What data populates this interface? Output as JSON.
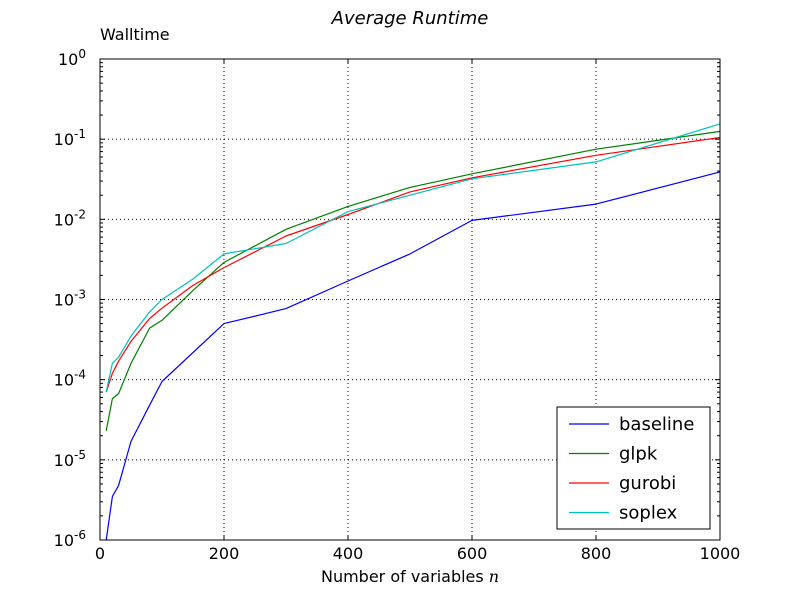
{
  "chart_data": {
    "type": "line",
    "title": "Average Runtime",
    "ylabel": "Walltime",
    "xlabel": "Number of variables",
    "xlabel_var": "n",
    "xlim": [
      0,
      1000
    ],
    "ylim": [
      1e-06,
      1
    ],
    "yscale": "log",
    "grid": true,
    "legend_position": "bottom-right",
    "x_ticks": [
      0,
      200,
      400,
      600,
      800,
      1000
    ],
    "x_tick_labels": [
      "0",
      "200",
      "400",
      "600",
      "800",
      "1000"
    ],
    "y_ticks": [
      1e-06,
      1e-05,
      0.0001,
      0.001,
      0.01,
      0.1,
      1
    ],
    "y_tick_labels": [
      {
        "base": "10",
        "exp": "-6"
      },
      {
        "base": "10",
        "exp": "-5"
      },
      {
        "base": "10",
        "exp": "-4"
      },
      {
        "base": "10",
        "exp": "-3"
      },
      {
        "base": "10",
        "exp": "-2"
      },
      {
        "base": "10",
        "exp": "-1"
      },
      {
        "base": "10",
        "exp": "0"
      }
    ],
    "series": [
      {
        "name": "baseline",
        "color": "#0000ff",
        "x": [
          10,
          20,
          30,
          50,
          80,
          100,
          200,
          300,
          400,
          500,
          600,
          800,
          1000
        ],
        "y": [
          1e-06,
          3.5e-06,
          4.8e-06,
          1.7e-05,
          4.8e-05,
          9.5e-05,
          0.0005,
          0.00077,
          0.0017,
          0.0037,
          0.0097,
          0.0155,
          0.039
        ]
      },
      {
        "name": "glpk",
        "color": "#008000",
        "x": [
          10,
          20,
          30,
          50,
          80,
          100,
          150,
          200,
          300,
          400,
          500,
          600,
          800,
          1000
        ],
        "y": [
          2.3e-05,
          5.8e-05,
          6.7e-05,
          0.00016,
          0.00044,
          0.00055,
          0.0013,
          0.0029,
          0.0075,
          0.0145,
          0.025,
          0.037,
          0.075,
          0.125
        ]
      },
      {
        "name": "gurobi",
        "color": "#ff0000",
        "x": [
          10,
          20,
          30,
          50,
          80,
          100,
          150,
          200,
          300,
          400,
          500,
          600,
          800,
          1000
        ],
        "y": [
          7e-05,
          0.00012,
          0.00017,
          0.0003,
          0.00058,
          0.00078,
          0.0015,
          0.0025,
          0.0062,
          0.0115,
          0.022,
          0.033,
          0.063,
          0.105
        ]
      },
      {
        "name": "soplex",
        "color": "#00bfbf",
        "x": [
          10,
          20,
          30,
          50,
          80,
          100,
          150,
          200,
          300,
          400,
          500,
          600,
          800,
          1000
        ],
        "y": [
          7e-05,
          0.00016,
          0.00019,
          0.00035,
          0.0007,
          0.001,
          0.0018,
          0.0037,
          0.005,
          0.0125,
          0.02,
          0.032,
          0.052,
          0.155
        ]
      }
    ]
  }
}
